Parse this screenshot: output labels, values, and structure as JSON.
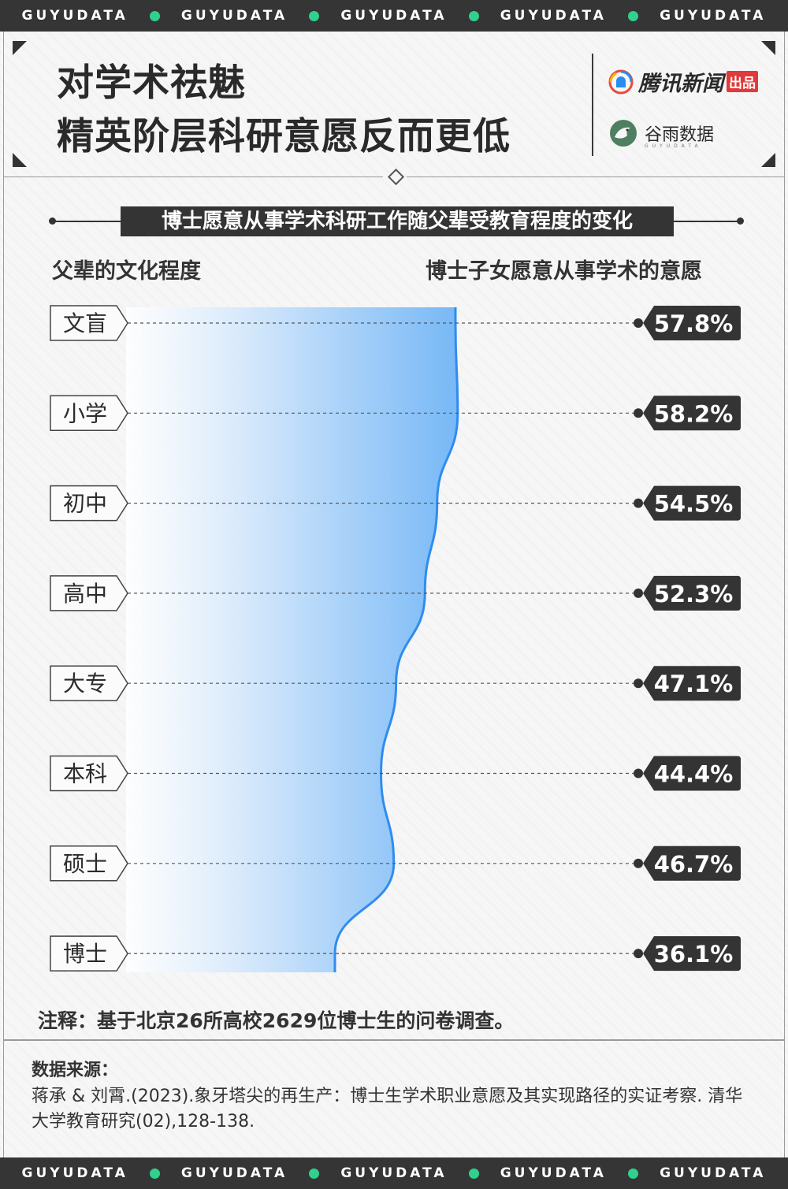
{
  "band": {
    "items": [
      "GUYUDATA",
      "GUYUDATA",
      "GUYUDATA",
      "GUYUDATA",
      "GUYUDATA"
    ]
  },
  "header": {
    "title_line1": "对学术祛魅",
    "title_line2": "精英阶层科研意愿反而更低",
    "logo1_text": "腾讯新闻",
    "logo1_badge": "出品",
    "logo2_text": "谷雨数据",
    "logo2_sub": "GUYUDATA"
  },
  "colors": {
    "accent": "#2f8cf0",
    "band": "#353535",
    "dot": "#2fd18c"
  },
  "chart_data": {
    "type": "area",
    "title": "博士愿意从事学术科研工作随父辈受教育程度的变化",
    "xlabel": "父辈的文化程度",
    "ylabel": "博士子女愿意从事学术的意愿",
    "categories": [
      "文盲",
      "小学",
      "初中",
      "高中",
      "大专",
      "本科",
      "硕士",
      "博士"
    ],
    "value_labels": [
      "57.8%",
      "58.2%",
      "54.5%",
      "52.3%",
      "47.1%",
      "44.4%",
      "46.7%",
      "36.1%"
    ],
    "values": [
      57.8,
      58.2,
      54.5,
      52.3,
      47.1,
      44.4,
      46.7,
      36.1
    ],
    "orientation": "horizontal",
    "unit": "%"
  },
  "note": "注释：基于北京26所高校2629位博士生的问卷调查。",
  "source": {
    "title": "数据来源：",
    "text": "蒋承 & 刘霄.(2023).象牙塔尖的再生产：博士生学术职业意愿及其实现路径的实证考察. 清华大学教育研究(02),128-138."
  }
}
